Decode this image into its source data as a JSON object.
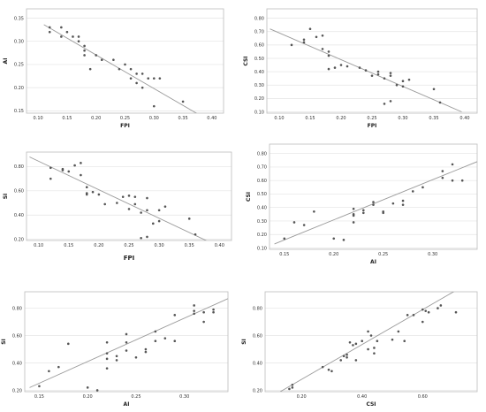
{
  "chart_data": [
    {
      "type": "scatter",
      "xlabel": "FPI",
      "ylabel": "AI",
      "xticks": [
        0.1,
        0.15,
        0.2,
        0.25,
        0.3,
        0.35,
        0.4
      ],
      "yticks": [
        0.15,
        0.2,
        0.25,
        0.3,
        0.35
      ],
      "xlim": [
        0.08,
        0.42
      ],
      "ylim": [
        0.145,
        0.37
      ],
      "grid": "horizontal",
      "points": [
        [
          0.12,
          0.33
        ],
        [
          0.12,
          0.32
        ],
        [
          0.14,
          0.33
        ],
        [
          0.14,
          0.31
        ],
        [
          0.15,
          0.32
        ],
        [
          0.16,
          0.31
        ],
        [
          0.17,
          0.3
        ],
        [
          0.17,
          0.31
        ],
        [
          0.18,
          0.29
        ],
        [
          0.18,
          0.28
        ],
        [
          0.18,
          0.27
        ],
        [
          0.19,
          0.24
        ],
        [
          0.2,
          0.27
        ],
        [
          0.21,
          0.26
        ],
        [
          0.23,
          0.26
        ],
        [
          0.24,
          0.24
        ],
        [
          0.25,
          0.25
        ],
        [
          0.26,
          0.24
        ],
        [
          0.26,
          0.22
        ],
        [
          0.27,
          0.21
        ],
        [
          0.27,
          0.23
        ],
        [
          0.28,
          0.23
        ],
        [
          0.28,
          0.2
        ],
        [
          0.29,
          0.22
        ],
        [
          0.3,
          0.22
        ],
        [
          0.3,
          0.16
        ],
        [
          0.31,
          0.22
        ],
        [
          0.35,
          0.17
        ]
      ],
      "fit_line": [
        [
          0.11,
          0.336
        ],
        [
          0.38,
          0.14
        ]
      ]
    },
    {
      "type": "scatter",
      "xlabel": "FPI",
      "ylabel": "CSI",
      "xticks": [
        0.1,
        0.15,
        0.2,
        0.25,
        0.3,
        0.35,
        0.4
      ],
      "yticks": [
        0.1,
        0.2,
        0.3,
        0.4,
        0.5,
        0.6,
        0.7,
        0.8
      ],
      "xlim": [
        0.08,
        0.42
      ],
      "ylim": [
        0.09,
        0.87
      ],
      "grid": "horizontal",
      "points": [
        [
          0.12,
          0.6
        ],
        [
          0.14,
          0.64
        ],
        [
          0.14,
          0.62
        ],
        [
          0.15,
          0.72
        ],
        [
          0.16,
          0.66
        ],
        [
          0.17,
          0.67
        ],
        [
          0.17,
          0.57
        ],
        [
          0.18,
          0.55
        ],
        [
          0.18,
          0.52
        ],
        [
          0.18,
          0.42
        ],
        [
          0.19,
          0.43
        ],
        [
          0.2,
          0.45
        ],
        [
          0.21,
          0.44
        ],
        [
          0.23,
          0.43
        ],
        [
          0.24,
          0.41
        ],
        [
          0.25,
          0.37
        ],
        [
          0.26,
          0.4
        ],
        [
          0.26,
          0.38
        ],
        [
          0.27,
          0.35
        ],
        [
          0.27,
          0.16
        ],
        [
          0.28,
          0.37
        ],
        [
          0.28,
          0.39
        ],
        [
          0.28,
          0.18
        ],
        [
          0.29,
          0.3
        ],
        [
          0.3,
          0.33
        ],
        [
          0.3,
          0.29
        ],
        [
          0.31,
          0.34
        ],
        [
          0.35,
          0.27
        ],
        [
          0.36,
          0.17
        ]
      ],
      "fit_line": [
        [
          0.085,
          0.72
        ],
        [
          0.395,
          0.1
        ]
      ]
    },
    {
      "type": "scatter",
      "xlabel": "FPI",
      "ylabel": "SI",
      "xticks": [
        0.1,
        0.15,
        0.2,
        0.25,
        0.3,
        0.35,
        0.4
      ],
      "yticks": [
        0.2,
        0.4,
        0.6,
        0.8
      ],
      "xlim": [
        0.08,
        0.42
      ],
      "ylim": [
        0.19,
        0.92
      ],
      "grid": "horizontal",
      "points": [
        [
          0.12,
          0.79
        ],
        [
          0.12,
          0.7
        ],
        [
          0.14,
          0.78
        ],
        [
          0.14,
          0.77
        ],
        [
          0.15,
          0.76
        ],
        [
          0.16,
          0.81
        ],
        [
          0.17,
          0.83
        ],
        [
          0.17,
          0.73
        ],
        [
          0.18,
          0.63
        ],
        [
          0.18,
          0.58
        ],
        [
          0.18,
          0.57
        ],
        [
          0.19,
          0.59
        ],
        [
          0.2,
          0.57
        ],
        [
          0.21,
          0.49
        ],
        [
          0.23,
          0.5
        ],
        [
          0.24,
          0.55
        ],
        [
          0.25,
          0.56
        ],
        [
          0.25,
          0.45
        ],
        [
          0.26,
          0.49
        ],
        [
          0.26,
          0.55
        ],
        [
          0.27,
          0.42
        ],
        [
          0.27,
          0.21
        ],
        [
          0.28,
          0.54
        ],
        [
          0.28,
          0.44
        ],
        [
          0.28,
          0.22
        ],
        [
          0.29,
          0.33
        ],
        [
          0.3,
          0.44
        ],
        [
          0.3,
          0.35
        ],
        [
          0.31,
          0.47
        ],
        [
          0.35,
          0.37
        ],
        [
          0.36,
          0.24
        ]
      ],
      "fit_line": [
        [
          0.085,
          0.88
        ],
        [
          0.38,
          0.185
        ]
      ]
    },
    {
      "type": "scatter",
      "xlabel": "AI",
      "ylabel": "CSI",
      "xticks": [
        0.15,
        0.2,
        0.25,
        0.3
      ],
      "yticks": [
        0.1,
        0.2,
        0.3,
        0.4,
        0.5,
        0.6,
        0.7,
        0.8
      ],
      "xlim": [
        0.135,
        0.345
      ],
      "ylim": [
        0.09,
        0.87
      ],
      "grid": "horizontal",
      "points": [
        [
          0.15,
          0.17
        ],
        [
          0.16,
          0.29
        ],
        [
          0.17,
          0.27
        ],
        [
          0.18,
          0.37
        ],
        [
          0.2,
          0.17
        ],
        [
          0.21,
          0.16
        ],
        [
          0.22,
          0.39
        ],
        [
          0.22,
          0.35
        ],
        [
          0.22,
          0.34
        ],
        [
          0.22,
          0.29
        ],
        [
          0.23,
          0.38
        ],
        [
          0.23,
          0.36
        ],
        [
          0.24,
          0.44
        ],
        [
          0.24,
          0.42
        ],
        [
          0.25,
          0.37
        ],
        [
          0.25,
          0.36
        ],
        [
          0.26,
          0.43
        ],
        [
          0.27,
          0.42
        ],
        [
          0.27,
          0.45
        ],
        [
          0.28,
          0.52
        ],
        [
          0.29,
          0.55
        ],
        [
          0.31,
          0.67
        ],
        [
          0.31,
          0.62
        ],
        [
          0.32,
          0.72
        ],
        [
          0.32,
          0.6
        ],
        [
          0.33,
          0.6
        ]
      ],
      "fit_line": [
        [
          0.14,
          0.13
        ],
        [
          0.345,
          0.74
        ]
      ]
    },
    {
      "type": "scatter",
      "xlabel": "AI",
      "ylabel": "SI",
      "xticks": [
        0.15,
        0.2,
        0.25,
        0.3
      ],
      "yticks": [
        0.2,
        0.4,
        0.6,
        0.8
      ],
      "xlim": [
        0.135,
        0.345
      ],
      "ylim": [
        0.19,
        0.92
      ],
      "grid": "horizontal",
      "points": [
        [
          0.15,
          0.23
        ],
        [
          0.16,
          0.34
        ],
        [
          0.17,
          0.37
        ],
        [
          0.18,
          0.54
        ],
        [
          0.2,
          0.22
        ],
        [
          0.21,
          0.2
        ],
        [
          0.22,
          0.55
        ],
        [
          0.22,
          0.47
        ],
        [
          0.22,
          0.43
        ],
        [
          0.22,
          0.36
        ],
        [
          0.23,
          0.45
        ],
        [
          0.23,
          0.42
        ],
        [
          0.24,
          0.61
        ],
        [
          0.24,
          0.55
        ],
        [
          0.24,
          0.49
        ],
        [
          0.25,
          0.44
        ],
        [
          0.26,
          0.5
        ],
        [
          0.26,
          0.48
        ],
        [
          0.27,
          0.63
        ],
        [
          0.27,
          0.56
        ],
        [
          0.28,
          0.58
        ],
        [
          0.29,
          0.75
        ],
        [
          0.29,
          0.56
        ],
        [
          0.31,
          0.82
        ],
        [
          0.31,
          0.78
        ],
        [
          0.31,
          0.76
        ],
        [
          0.32,
          0.77
        ],
        [
          0.32,
          0.7
        ],
        [
          0.33,
          0.79
        ],
        [
          0.33,
          0.77
        ]
      ],
      "fit_line": [
        [
          0.14,
          0.22
        ],
        [
          0.345,
          0.87
        ]
      ]
    },
    {
      "type": "scatter",
      "xlabel": "CSI",
      "ylabel": "SI",
      "xticks": [
        0.2,
        0.4,
        0.6
      ],
      "yticks": [
        0.2,
        0.4,
        0.6,
        0.8
      ],
      "xlim": [
        0.08,
        0.78
      ],
      "ylim": [
        0.19,
        0.92
      ],
      "grid": "horizontal",
      "points": [
        [
          0.16,
          0.21
        ],
        [
          0.17,
          0.22
        ],
        [
          0.17,
          0.24
        ],
        [
          0.27,
          0.37
        ],
        [
          0.29,
          0.35
        ],
        [
          0.3,
          0.34
        ],
        [
          0.33,
          0.42
        ],
        [
          0.34,
          0.45
        ],
        [
          0.35,
          0.44
        ],
        [
          0.35,
          0.46
        ],
        [
          0.36,
          0.55
        ],
        [
          0.37,
          0.53
        ],
        [
          0.38,
          0.54
        ],
        [
          0.38,
          0.42
        ],
        [
          0.4,
          0.56
        ],
        [
          0.42,
          0.5
        ],
        [
          0.42,
          0.63
        ],
        [
          0.43,
          0.6
        ],
        [
          0.44,
          0.47
        ],
        [
          0.44,
          0.51
        ],
        [
          0.45,
          0.56
        ],
        [
          0.5,
          0.57
        ],
        [
          0.52,
          0.63
        ],
        [
          0.54,
          0.56
        ],
        [
          0.55,
          0.75
        ],
        [
          0.57,
          0.75
        ],
        [
          0.6,
          0.79
        ],
        [
          0.6,
          0.7
        ],
        [
          0.61,
          0.78
        ],
        [
          0.62,
          0.77
        ],
        [
          0.65,
          0.8
        ],
        [
          0.66,
          0.82
        ],
        [
          0.71,
          0.77
        ]
      ],
      "fit_line": [
        [
          0.13,
          0.19
        ],
        [
          0.71,
          0.93
        ]
      ]
    }
  ]
}
